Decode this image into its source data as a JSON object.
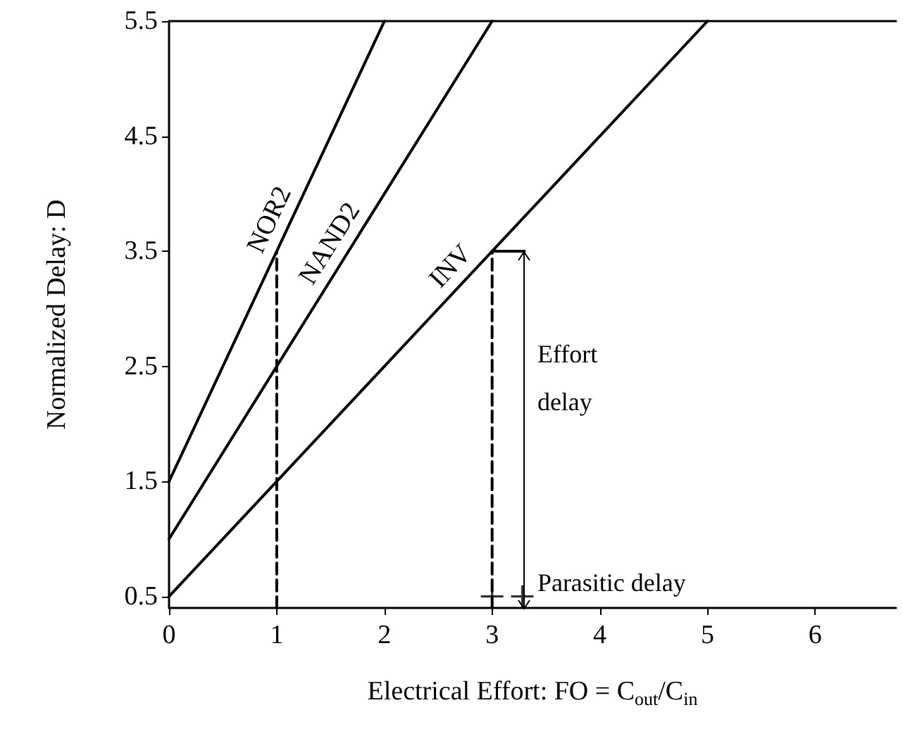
{
  "chart_data": {
    "type": "line",
    "xlabel": "Electrical Effort: FO = C$_{out}$/C$_{in}$",
    "ylabel": "Normalized Delay: D",
    "xlim": [
      0,
      6.75
    ],
    "ylim": [
      0.4,
      5.5
    ],
    "xticks": [
      0,
      1,
      2,
      3,
      4,
      5,
      6
    ],
    "yticks": [
      0.5,
      1.5,
      2.5,
      3.5,
      4.5,
      5.5
    ],
    "grid": false,
    "color": "#000000",
    "series": [
      {
        "name": "NOR2",
        "x": [
          0,
          2
        ],
        "values": [
          1.5,
          5.5
        ],
        "line_style": "solid"
      },
      {
        "name": "NAND2",
        "x": [
          0,
          3
        ],
        "values": [
          1,
          5.5
        ],
        "line_style": "solid"
      },
      {
        "name": "INV",
        "x": [
          0,
          5
        ],
        "values": [
          0.5,
          5.5
        ],
        "line_style": "solid"
      },
      {
        "x": [
          1,
          1
        ],
        "values": [
          0.4,
          3.5
        ],
        "line_style": "dashed"
      },
      {
        "x": [
          3,
          3
        ],
        "values": [
          0.4,
          3.5
        ],
        "line_style": "dashed"
      },
      {
        "x": [
          3,
          3.3
        ],
        "values": [
          3.5,
          3.5
        ],
        "line_style": "solid"
      },
      {
        "type": "scatter",
        "x": [
          3
        ],
        "values": [
          0.5
        ],
        "marker": "cross"
      },
      {
        "type": "scatter",
        "x": [
          3.28
        ],
        "values": [
          0.5
        ],
        "marker": "cross"
      }
    ],
    "annotations": [
      "Effort\ndelay",
      "Parasitic delay"
    ]
  }
}
